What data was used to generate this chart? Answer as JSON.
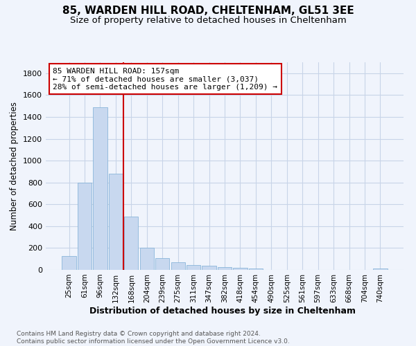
{
  "title": "85, WARDEN HILL ROAD, CHELTENHAM, GL51 3EE",
  "subtitle": "Size of property relative to detached houses in Cheltenham",
  "xlabel": "Distribution of detached houses by size in Cheltenham",
  "ylabel": "Number of detached properties",
  "categories": [
    "25sqm",
    "61sqm",
    "96sqm",
    "132sqm",
    "168sqm",
    "204sqm",
    "239sqm",
    "275sqm",
    "311sqm",
    "347sqm",
    "382sqm",
    "418sqm",
    "454sqm",
    "490sqm",
    "525sqm",
    "561sqm",
    "597sqm",
    "633sqm",
    "668sqm",
    "704sqm",
    "740sqm"
  ],
  "values": [
    125,
    800,
    1490,
    880,
    490,
    205,
    110,
    70,
    47,
    35,
    25,
    20,
    10,
    0,
    0,
    0,
    0,
    0,
    0,
    0,
    15
  ],
  "bar_color": "#c8d8ef",
  "bar_edge_color": "#7aacd4",
  "reference_line_x": 4,
  "reference_line_label": "85 WARDEN HILL ROAD: 157sqm",
  "annotation_line1": "← 71% of detached houses are smaller (3,037)",
  "annotation_line2": "28% of semi-detached houses are larger (1,209) →",
  "annotation_box_color": "#ffffff",
  "annotation_box_edge": "#cc0000",
  "ref_line_color": "#cc0000",
  "ylim": [
    0,
    1900
  ],
  "yticks": [
    0,
    200,
    400,
    600,
    800,
    1000,
    1200,
    1400,
    1600,
    1800
  ],
  "grid_color": "#c8d4e8",
  "footnote": "Contains HM Land Registry data © Crown copyright and database right 2024.\nContains public sector information licensed under the Open Government Licence v3.0.",
  "bg_color": "#f0f4fc",
  "title_fontsize": 11,
  "subtitle_fontsize": 9.5
}
